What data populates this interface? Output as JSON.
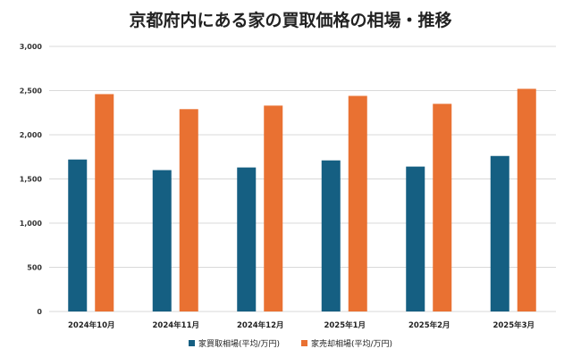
{
  "chart_data": {
    "type": "bar",
    "title": "京都府内にある家の買取価格の相場・推移",
    "categories": [
      "2024年10月",
      "2024年11月",
      "2024年12月",
      "2025年1月",
      "2025年2月",
      "2025年3月"
    ],
    "series": [
      {
        "name": "家買取相場(平均/万円)",
        "color": "#155f82",
        "values": [
          1720,
          1600,
          1630,
          1710,
          1640,
          1760
        ]
      },
      {
        "name": "家売却相場(平均/万円)",
        "color": "#e97132",
        "values": [
          2460,
          2290,
          2330,
          2440,
          2350,
          2520
        ]
      }
    ],
    "ylim": [
      0,
      3000
    ],
    "yticks": [
      0,
      500,
      1000,
      1500,
      2000,
      2500,
      3000
    ],
    "ytick_labels": [
      "0",
      "500",
      "1,000",
      "1,500",
      "2,000",
      "2,500",
      "3,000"
    ],
    "grid": true,
    "legend": "bottom"
  }
}
